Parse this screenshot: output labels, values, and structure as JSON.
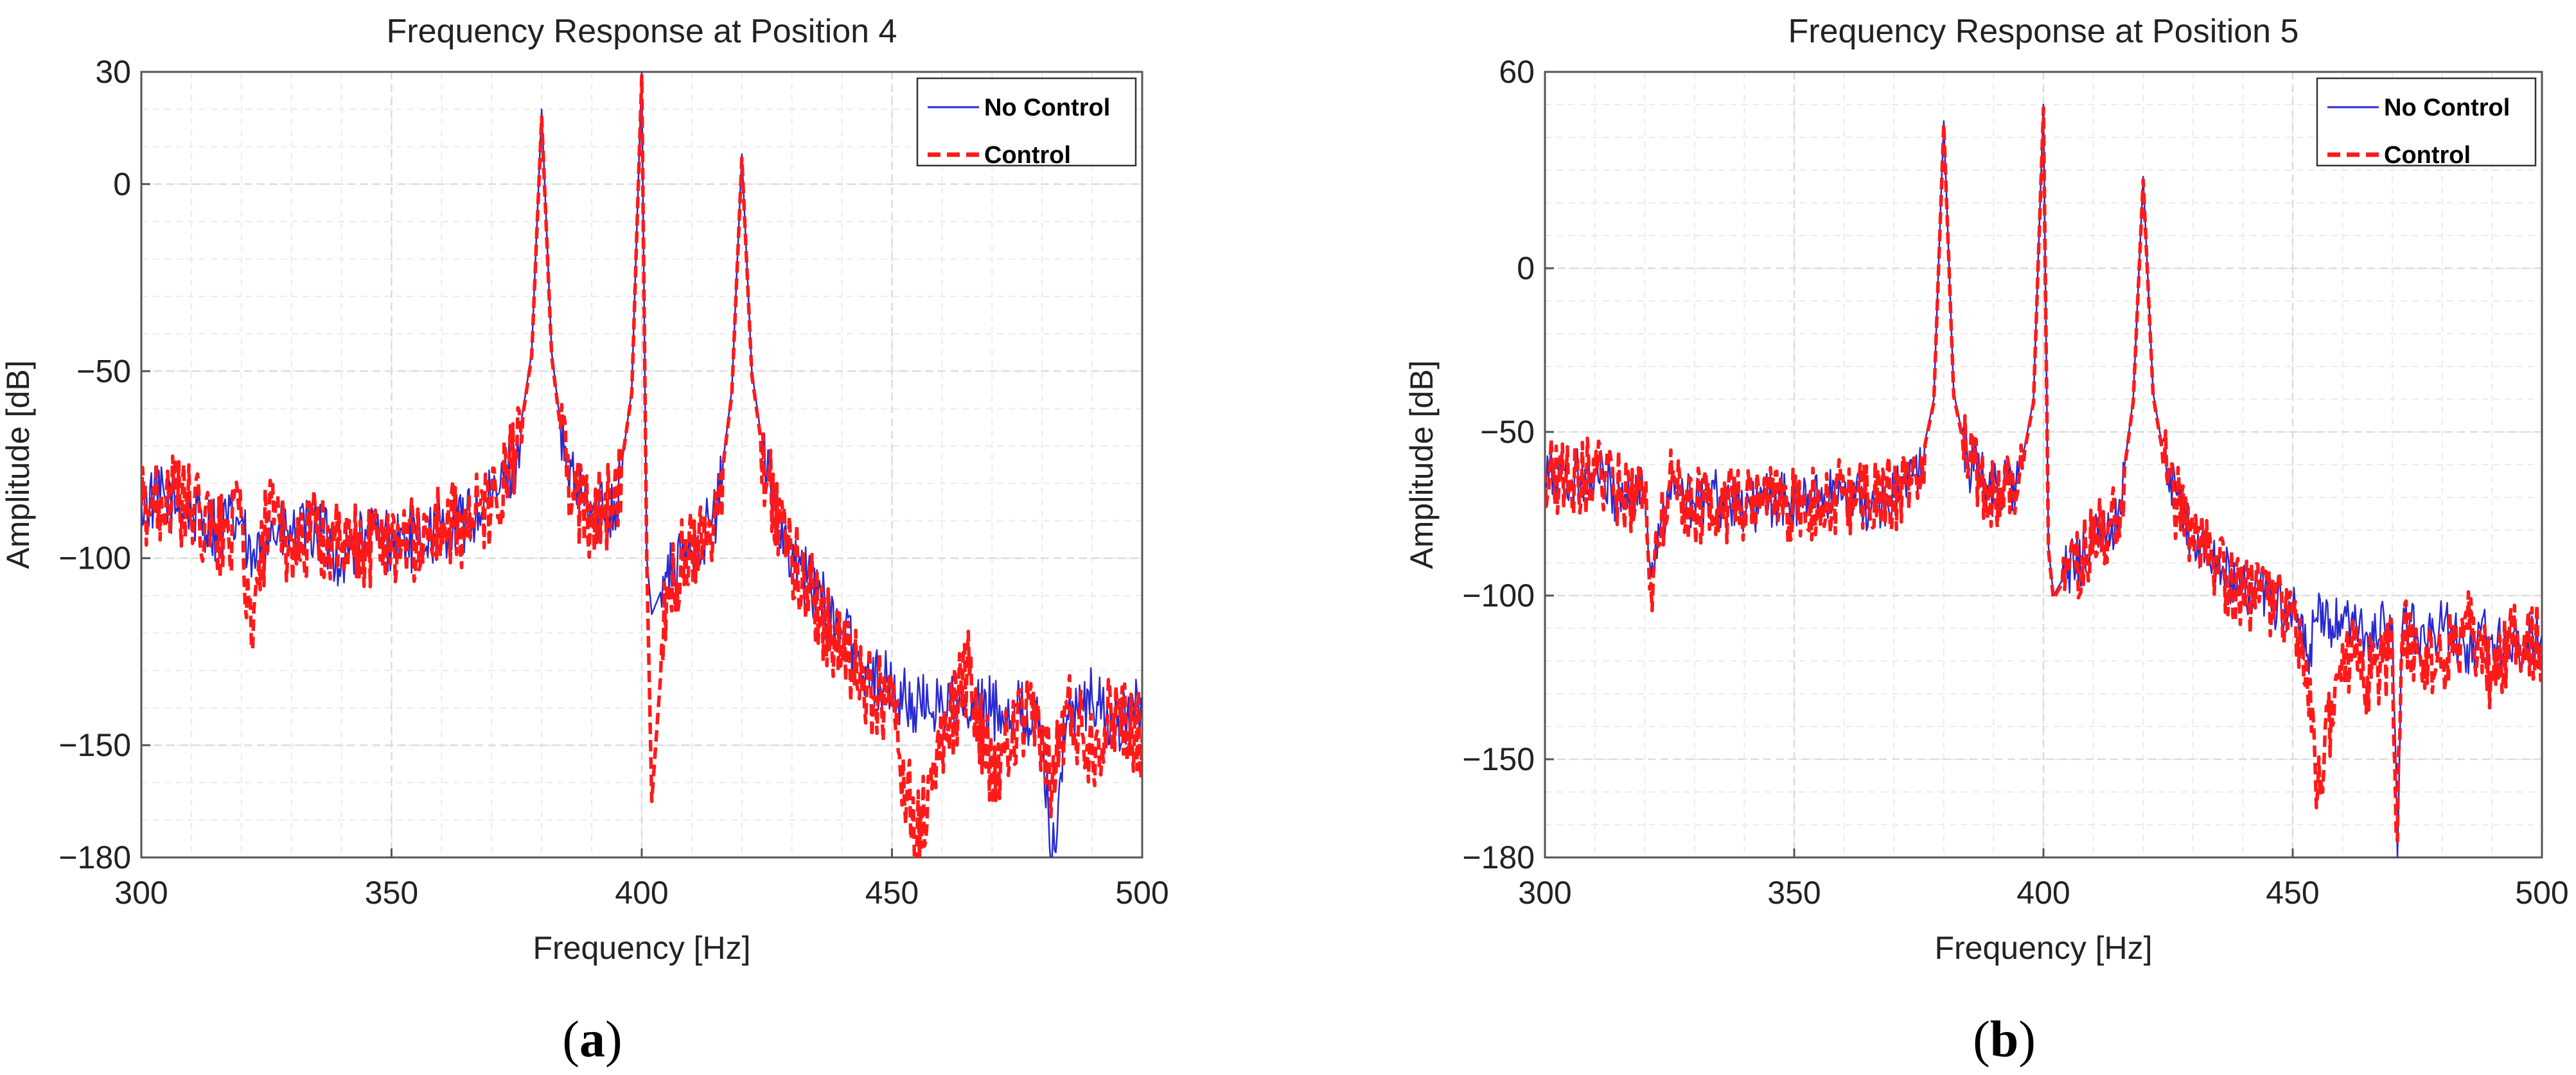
{
  "colors": {
    "no_control": "#2a2ad0",
    "control": "#ff1a1a",
    "grid": "#dcdcdc",
    "axis": "#555555"
  },
  "chart_data": [
    {
      "type": "line",
      "panel_label": "a",
      "title": "Frequency Response at Position 4",
      "xlabel": "Frequency [Hz]",
      "ylabel": "Amplitude [dB]",
      "xlim": [
        300,
        500
      ],
      "ylim": [
        -180,
        30
      ],
      "xticks": [
        300,
        350,
        400,
        450,
        500
      ],
      "yticks": [
        30,
        0,
        -50,
        -100,
        -150,
        -180
      ],
      "ytick_labels": [
        "30",
        "0",
        "−50",
        "−100",
        "−150",
        "−180"
      ],
      "grid": true,
      "legend_position": "top-right",
      "peaks": [
        380,
        400,
        420
      ],
      "series": [
        {
          "name": "No Control",
          "style": "solid",
          "x": [
            300,
            305,
            310,
            315,
            320,
            322,
            325,
            330,
            335,
            340,
            345,
            350,
            355,
            360,
            365,
            370,
            375,
            378,
            380,
            382,
            385,
            390,
            395,
            398,
            400,
            401,
            402,
            405,
            410,
            415,
            418,
            420,
            422,
            425,
            430,
            440,
            445,
            450,
            455,
            460,
            465,
            470,
            475,
            480,
            482,
            485,
            490,
            495,
            500
          ],
          "y": [
            -85,
            -84,
            -88,
            -92,
            -90,
            -105,
            -92,
            -95,
            -92,
            -100,
            -94,
            -95,
            -95,
            -92,
            -90,
            -85,
            -72,
            -45,
            20,
            -45,
            -78,
            -88,
            -85,
            -55,
            30,
            -100,
            -115,
            -105,
            -98,
            -88,
            -55,
            8,
            -50,
            -78,
            -100,
            -120,
            -130,
            -135,
            -140,
            -138,
            -142,
            -140,
            -140,
            -145,
            -180,
            -142,
            -138,
            -145,
            -140
          ]
        },
        {
          "name": "Control",
          "style": "dashed",
          "x": [
            300,
            305,
            310,
            315,
            320,
            322,
            325,
            330,
            335,
            340,
            345,
            350,
            355,
            360,
            365,
            370,
            375,
            378,
            380,
            382,
            385,
            390,
            395,
            398,
            400,
            401,
            402,
            405,
            410,
            415,
            418,
            420,
            422,
            425,
            430,
            440,
            445,
            450,
            455,
            460,
            465,
            470,
            475,
            480,
            482,
            485,
            490,
            495,
            500
          ],
          "y": [
            -86,
            -83,
            -87,
            -95,
            -90,
            -123,
            -90,
            -96,
            -93,
            -98,
            -96,
            -94,
            -96,
            -91,
            -91,
            -86,
            -73,
            -46,
            18,
            -46,
            -79,
            -90,
            -84,
            -56,
            29,
            -100,
            -165,
            -108,
            -96,
            -89,
            -56,
            7,
            -51,
            -80,
            -100,
            -125,
            -135,
            -140,
            -175,
            -150,
            -130,
            -160,
            -145,
            -145,
            -160,
            -140,
            -150,
            -140,
            -148
          ]
        }
      ]
    },
    {
      "type": "line",
      "panel_label": "b",
      "title": "Frequency Response at Position 5",
      "xlabel": "Frequency [Hz]",
      "ylabel": "Amplitude [dB]",
      "xlim": [
        300,
        500
      ],
      "ylim": [
        -180,
        60
      ],
      "xticks": [
        300,
        350,
        400,
        450,
        500
      ],
      "yticks": [
        60,
        0,
        -50,
        -100,
        -150,
        -180
      ],
      "ytick_labels": [
        "60",
        "0",
        "−50",
        "−100",
        "−150",
        "−180"
      ],
      "grid": true,
      "legend_position": "top-right",
      "peaks": [
        380,
        400,
        420
      ],
      "series": [
        {
          "name": "No Control",
          "style": "solid",
          "x": [
            300,
            305,
            310,
            315,
            320,
            321,
            325,
            330,
            335,
            340,
            345,
            350,
            355,
            360,
            365,
            370,
            375,
            378,
            380,
            382,
            385,
            390,
            395,
            398,
            400,
            401,
            402,
            405,
            410,
            415,
            418,
            420,
            422,
            425,
            430,
            435,
            440,
            445,
            450,
            453,
            455,
            460,
            465,
            470,
            471,
            472,
            475,
            480,
            485,
            490,
            495,
            500
          ],
          "y": [
            -63,
            -65,
            -62,
            -70,
            -68,
            -90,
            -68,
            -72,
            -70,
            -75,
            -70,
            -72,
            -70,
            -68,
            -72,
            -70,
            -62,
            -40,
            45,
            -38,
            -60,
            -68,
            -65,
            -40,
            50,
            -85,
            -100,
            -92,
            -85,
            -75,
            -40,
            28,
            -38,
            -65,
            -82,
            -92,
            -98,
            -100,
            -105,
            -118,
            -108,
            -110,
            -112,
            -108,
            -180,
            -110,
            -112,
            -110,
            -115,
            -112,
            -115,
            -112
          ]
        },
        {
          "name": "Control",
          "style": "dashed",
          "x": [
            300,
            305,
            310,
            315,
            320,
            321,
            325,
            330,
            335,
            340,
            345,
            350,
            355,
            360,
            365,
            370,
            375,
            378,
            380,
            382,
            385,
            390,
            395,
            398,
            400,
            401,
            402,
            405,
            410,
            415,
            418,
            420,
            422,
            425,
            430,
            435,
            440,
            445,
            450,
            453,
            455,
            460,
            465,
            470,
            471,
            472,
            475,
            480,
            485,
            490,
            495,
            500
          ],
          "y": [
            -62,
            -64,
            -63,
            -68,
            -70,
            -98,
            -66,
            -73,
            -71,
            -74,
            -71,
            -73,
            -71,
            -69,
            -71,
            -69,
            -63,
            -41,
            44,
            -39,
            -61,
            -69,
            -66,
            -41,
            49,
            -86,
            -101,
            -93,
            -84,
            -76,
            -41,
            27,
            -39,
            -66,
            -83,
            -93,
            -99,
            -102,
            -106,
            -130,
            -160,
            -115,
            -125,
            -118,
            -175,
            -112,
            -118,
            -120,
            -110,
            -125,
            -112,
            -115
          ]
        }
      ]
    }
  ]
}
